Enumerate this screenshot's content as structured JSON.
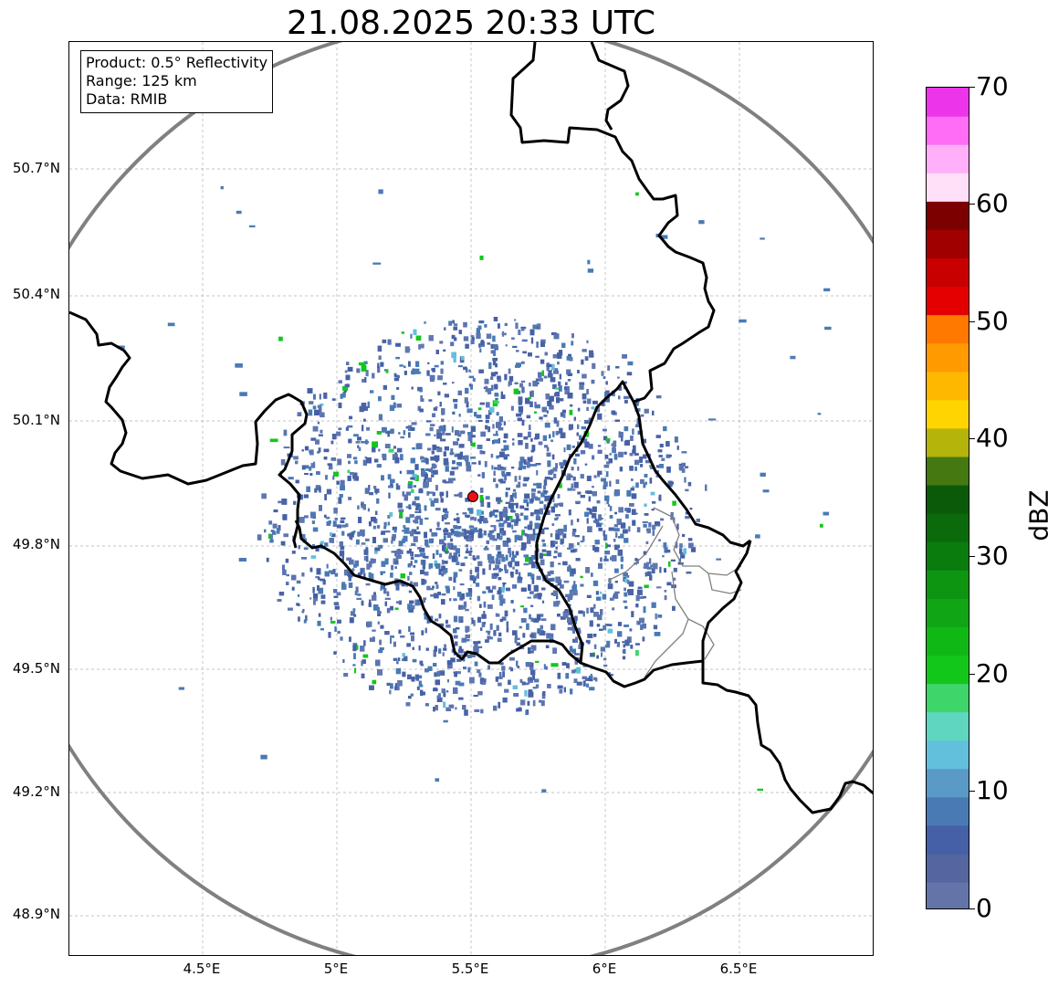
{
  "title": "21.08.2025 20:33 UTC",
  "info_box": {
    "product": "Product: 0.5° Reflectivity",
    "range": "Range: 125 km",
    "data": "Data: RMIB"
  },
  "lat_ticks": [
    "50.7°N",
    "50.4°N",
    "50.1°N",
    "49.8°N",
    "49.5°N",
    "49.2°N",
    "48.9°N"
  ],
  "lon_ticks": [
    "4.5°E",
    "5°E",
    "5.5°E",
    "6°E",
    "6.5°E"
  ],
  "colorbar": {
    "label": "dBZ",
    "ticks": [
      "0",
      "10",
      "20",
      "30",
      "40",
      "50",
      "60",
      "70"
    ],
    "colors": [
      "#6474a8",
      "#5565a0",
      "#4560a6",
      "#4a7ab4",
      "#5a9ac6",
      "#62c0dc",
      "#5ed6c0",
      "#3ed56a",
      "#12c71a",
      "#10b816",
      "#0fa514",
      "#0d9410",
      "#0a7c0d",
      "#0b6a0b",
      "#0a5a0a",
      "#457810",
      "#b4b40a",
      "#ffd400",
      "#ffb800",
      "#ff9a00",
      "#ff7800",
      "#e40000",
      "#c80000",
      "#a00000",
      "#7c0000",
      "#ffe0f8",
      "#ffb0f8",
      "#ff6cf6",
      "#ec34ea"
    ]
  },
  "radar_site": {
    "lat": "49.91",
    "lon": "5.51"
  },
  "colors": {
    "border": "#000000",
    "range_ring": "#808080",
    "grid": "#b0b0b0",
    "site": "#ee1111"
  }
}
